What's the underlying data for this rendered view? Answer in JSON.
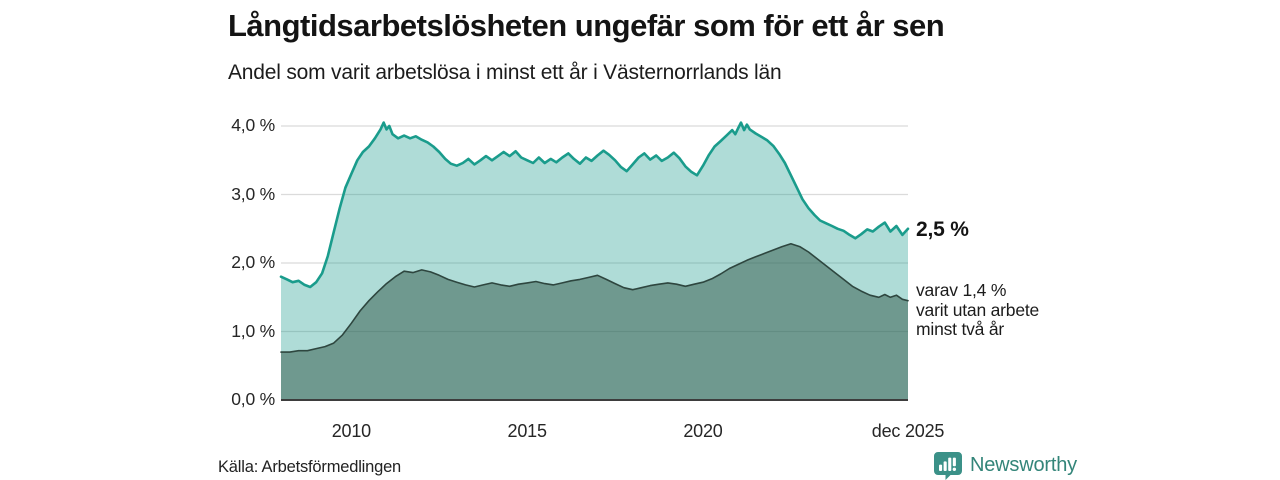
{
  "header": {
    "title": "Långtidsarbetslösheten ungefär som för ett år sen",
    "subtitle": "Andel som varit arbetslösa i minst ett år i Västernorrlands län"
  },
  "annotations": {
    "total_end_label": "2,5 %",
    "two_year_lines": [
      "varav 1,4 %",
      "varit utan arbete",
      "minst två år"
    ]
  },
  "footer": {
    "source": "Källa: Arbetsförmedlingen",
    "brand": "Newsworthy"
  },
  "colors": {
    "brand_teal": "#3b9188",
    "brand_text": "#338579",
    "grid": "#dbdbdb",
    "axis": "#3d3d3d",
    "text_dark": "#141414"
  },
  "chart_data": {
    "type": "area",
    "title": "Långtidsarbetslösheten ungefär som för ett år sen",
    "subtitle": "Andel som varit arbetslösa i minst ett år i Västernorrlands län",
    "region": "Västernorrlands län",
    "unit": "percent",
    "grid": true,
    "xlim": [
      2008.0,
      2025.83
    ],
    "ylim": [
      0,
      4.3
    ],
    "x_ticks": [
      {
        "x": 2010,
        "label": "2010"
      },
      {
        "x": 2015,
        "label": "2015"
      },
      {
        "x": 2020,
        "label": "2020"
      },
      {
        "x": 2025.83,
        "label": "dec 2025"
      }
    ],
    "y_ticks": [
      {
        "value": 4.0,
        "label": "4,0 %"
      },
      {
        "value": 3.0,
        "label": "3,0 %"
      },
      {
        "value": 2.0,
        "label": "2,0 %"
      },
      {
        "value": 1.0,
        "label": "1,0 %"
      },
      {
        "value": 0.0,
        "label": "0,0 %"
      }
    ],
    "series": [
      {
        "name": "Arbetslösa minst ett år",
        "end_value": 2.5,
        "line_color": "#1a9c8c",
        "line_width": 2.6,
        "fill_color": "rgba(26,156,140,0.35)",
        "x": [
          2008.0,
          2008.17,
          2008.33,
          2008.5,
          2008.67,
          2008.83,
          2009.0,
          2009.17,
          2009.33,
          2009.5,
          2009.67,
          2009.83,
          2010.0,
          2010.17,
          2010.33,
          2010.5,
          2010.67,
          2010.83,
          2010.92,
          2011.0,
          2011.08,
          2011.17,
          2011.33,
          2011.5,
          2011.67,
          2011.83,
          2012.0,
          2012.17,
          2012.33,
          2012.5,
          2012.67,
          2012.83,
          2013.0,
          2013.17,
          2013.33,
          2013.5,
          2013.67,
          2013.83,
          2014.0,
          2014.17,
          2014.33,
          2014.5,
          2014.67,
          2014.83,
          2015.0,
          2015.17,
          2015.33,
          2015.5,
          2015.67,
          2015.83,
          2016.0,
          2016.17,
          2016.33,
          2016.5,
          2016.67,
          2016.83,
          2017.0,
          2017.17,
          2017.33,
          2017.5,
          2017.67,
          2017.83,
          2018.0,
          2018.17,
          2018.33,
          2018.5,
          2018.67,
          2018.83,
          2019.0,
          2019.17,
          2019.33,
          2019.5,
          2019.67,
          2019.83,
          2020.0,
          2020.17,
          2020.33,
          2020.5,
          2020.67,
          2020.83,
          2020.92,
          2021.0,
          2021.08,
          2021.17,
          2021.25,
          2021.33,
          2021.5,
          2021.67,
          2021.83,
          2022.0,
          2022.17,
          2022.33,
          2022.5,
          2022.67,
          2022.83,
          2023.0,
          2023.17,
          2023.33,
          2023.5,
          2023.67,
          2023.83,
          2024.0,
          2024.17,
          2024.33,
          2024.5,
          2024.67,
          2024.83,
          2025.0,
          2025.17,
          2025.33,
          2025.5,
          2025.67,
          2025.83
        ],
        "values": [
          1.8,
          1.76,
          1.72,
          1.74,
          1.68,
          1.65,
          1.72,
          1.85,
          2.1,
          2.45,
          2.8,
          3.1,
          3.3,
          3.5,
          3.62,
          3.7,
          3.82,
          3.95,
          4.05,
          3.95,
          4.0,
          3.88,
          3.82,
          3.86,
          3.82,
          3.85,
          3.8,
          3.76,
          3.7,
          3.62,
          3.52,
          3.45,
          3.42,
          3.46,
          3.52,
          3.44,
          3.5,
          3.56,
          3.5,
          3.56,
          3.62,
          3.56,
          3.63,
          3.54,
          3.5,
          3.46,
          3.54,
          3.46,
          3.52,
          3.47,
          3.54,
          3.6,
          3.52,
          3.45,
          3.54,
          3.49,
          3.57,
          3.64,
          3.58,
          3.5,
          3.4,
          3.34,
          3.44,
          3.54,
          3.6,
          3.51,
          3.57,
          3.49,
          3.54,
          3.61,
          3.53,
          3.41,
          3.33,
          3.28,
          3.42,
          3.58,
          3.7,
          3.78,
          3.86,
          3.94,
          3.88,
          3.97,
          4.05,
          3.94,
          4.02,
          3.95,
          3.89,
          3.84,
          3.79,
          3.71,
          3.59,
          3.46,
          3.28,
          3.1,
          2.93,
          2.8,
          2.7,
          2.62,
          2.58,
          2.54,
          2.5,
          2.47,
          2.41,
          2.36,
          2.42,
          2.49,
          2.46,
          2.53,
          2.59,
          2.46,
          2.54,
          2.41,
          2.5
        ]
      },
      {
        "name": "Utan arbete minst två år",
        "end_value": 1.4,
        "line_color": "#2e463f",
        "line_width": 1.6,
        "fill_color": "rgba(47,86,71,0.5)",
        "x": [
          2008.0,
          2008.25,
          2008.5,
          2008.75,
          2009.0,
          2009.25,
          2009.5,
          2009.75,
          2010.0,
          2010.25,
          2010.5,
          2010.75,
          2011.0,
          2011.25,
          2011.5,
          2011.75,
          2012.0,
          2012.25,
          2012.5,
          2012.75,
          2013.0,
          2013.25,
          2013.5,
          2013.75,
          2014.0,
          2014.25,
          2014.5,
          2014.75,
          2015.0,
          2015.25,
          2015.5,
          2015.75,
          2016.0,
          2016.25,
          2016.5,
          2016.75,
          2017.0,
          2017.25,
          2017.5,
          2017.75,
          2018.0,
          2018.25,
          2018.5,
          2018.75,
          2019.0,
          2019.25,
          2019.5,
          2019.75,
          2020.0,
          2020.25,
          2020.5,
          2020.75,
          2021.0,
          2021.25,
          2021.5,
          2021.75,
          2022.0,
          2022.25,
          2022.5,
          2022.75,
          2023.0,
          2023.25,
          2023.5,
          2023.75,
          2024.0,
          2024.25,
          2024.5,
          2024.75,
          2025.0,
          2025.17,
          2025.33,
          2025.5,
          2025.67,
          2025.83
        ],
        "values": [
          0.7,
          0.7,
          0.72,
          0.72,
          0.75,
          0.78,
          0.83,
          0.95,
          1.12,
          1.3,
          1.45,
          1.58,
          1.7,
          1.8,
          1.88,
          1.86,
          1.9,
          1.87,
          1.82,
          1.76,
          1.72,
          1.68,
          1.65,
          1.68,
          1.71,
          1.68,
          1.66,
          1.69,
          1.71,
          1.73,
          1.7,
          1.68,
          1.71,
          1.74,
          1.76,
          1.79,
          1.82,
          1.76,
          1.7,
          1.64,
          1.61,
          1.64,
          1.67,
          1.69,
          1.71,
          1.69,
          1.66,
          1.69,
          1.72,
          1.77,
          1.84,
          1.92,
          1.98,
          2.04,
          2.09,
          2.14,
          2.19,
          2.24,
          2.28,
          2.24,
          2.16,
          2.06,
          1.96,
          1.86,
          1.76,
          1.66,
          1.59,
          1.53,
          1.5,
          1.54,
          1.5,
          1.53,
          1.47,
          1.45
        ]
      }
    ]
  }
}
